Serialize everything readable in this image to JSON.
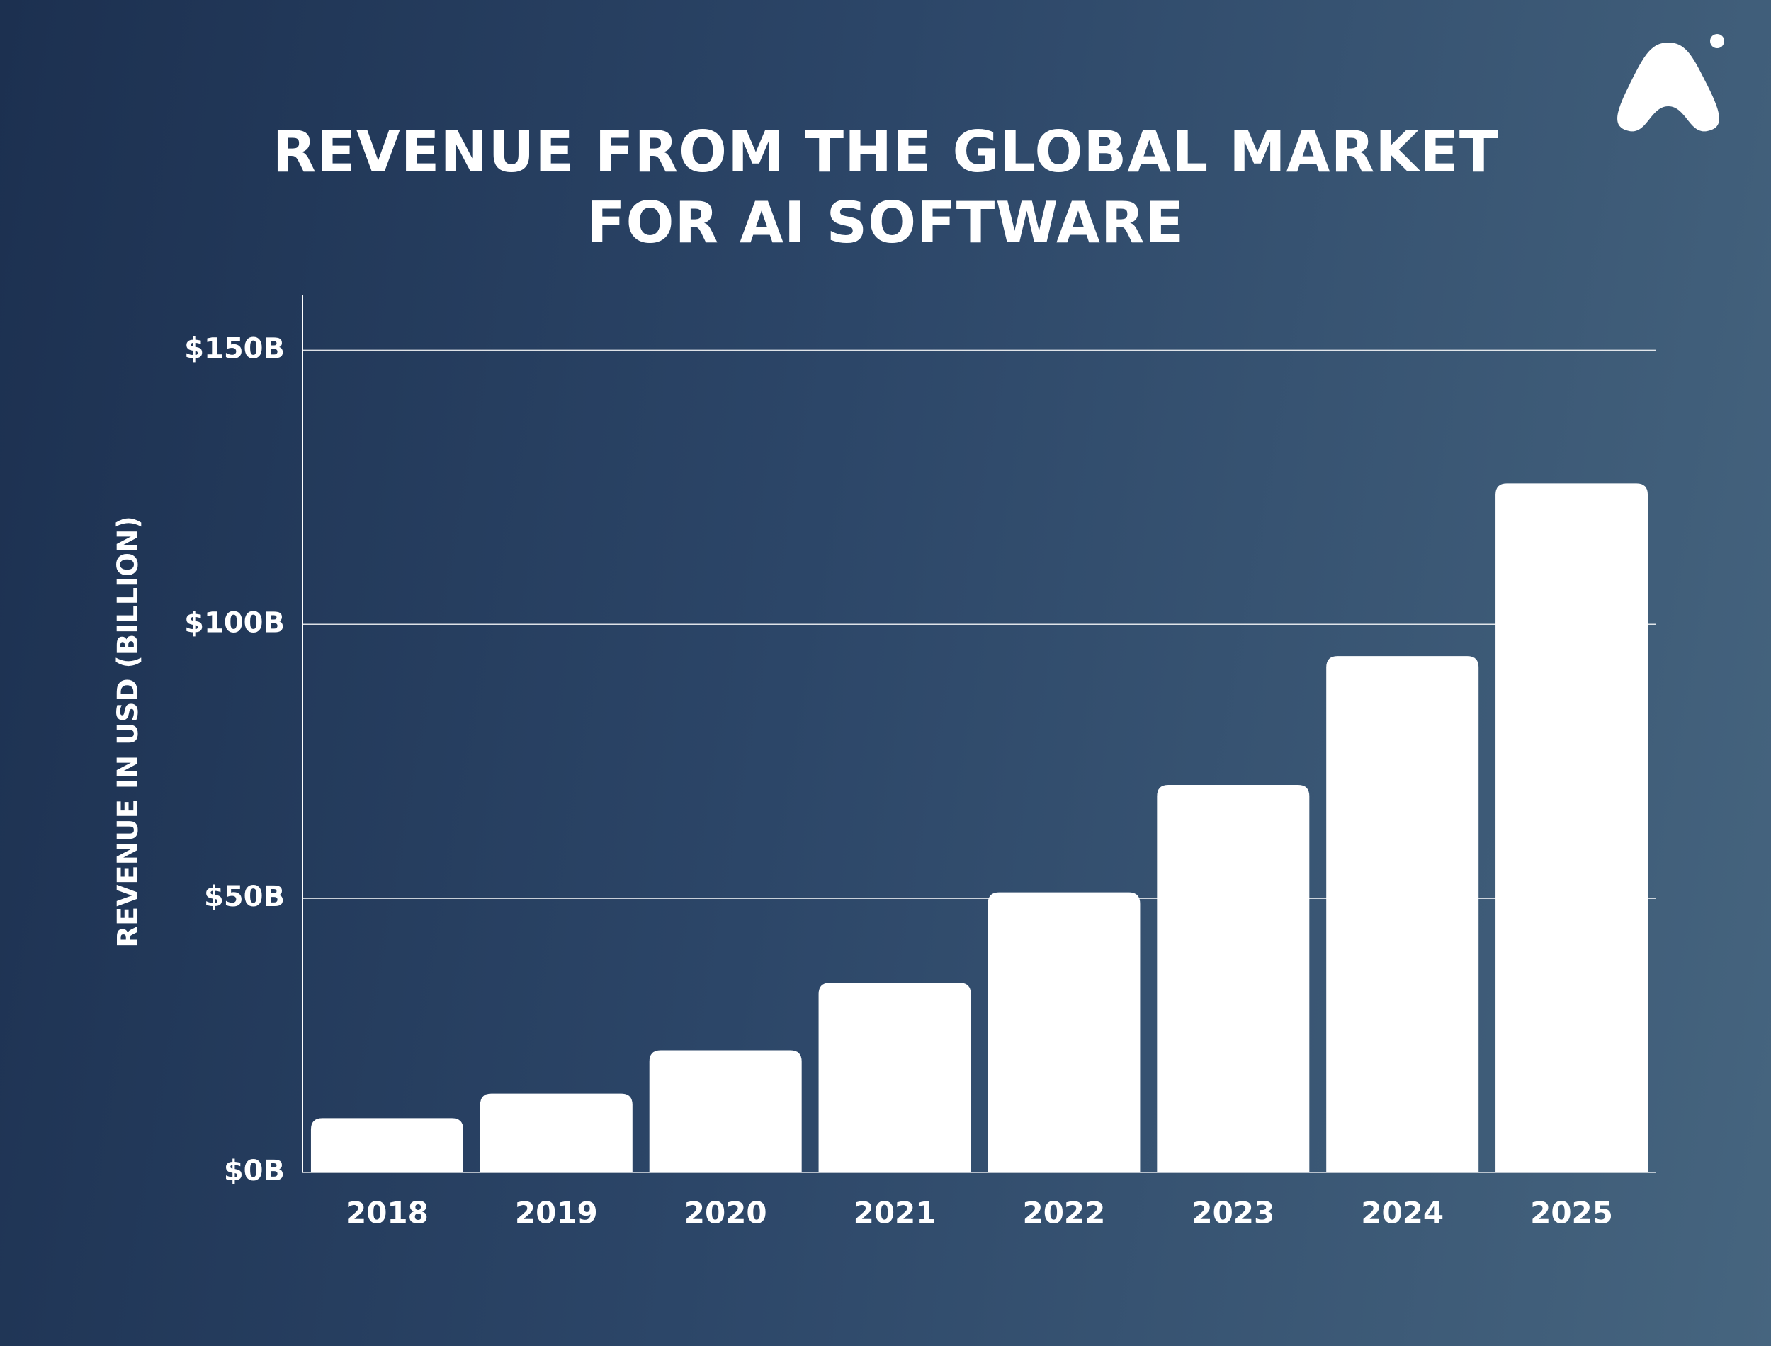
{
  "chart_data": {
    "type": "bar",
    "title": "REVENUE FROM THE GLOBAL MARKET FOR AI SOFTWARE",
    "y_label": "REVENUE IN USD (BILLION)",
    "categories": [
      "2018",
      "2019",
      "2020",
      "2021",
      "2022",
      "2023",
      "2024",
      "2025"
    ],
    "values": [
      9.9,
      14.4,
      22.3,
      34.6,
      51.1,
      70.7,
      94.2,
      125.7
    ],
    "color": "#ffffff",
    "ylim": [
      0,
      160
    ],
    "yticks": [
      {
        "value": 0,
        "label": "$0B"
      },
      {
        "value": 50,
        "label": "$50B"
      },
      {
        "value": 100,
        "label": "$100B"
      },
      {
        "value": 150,
        "label": "$150B"
      }
    ],
    "grid": true
  }
}
